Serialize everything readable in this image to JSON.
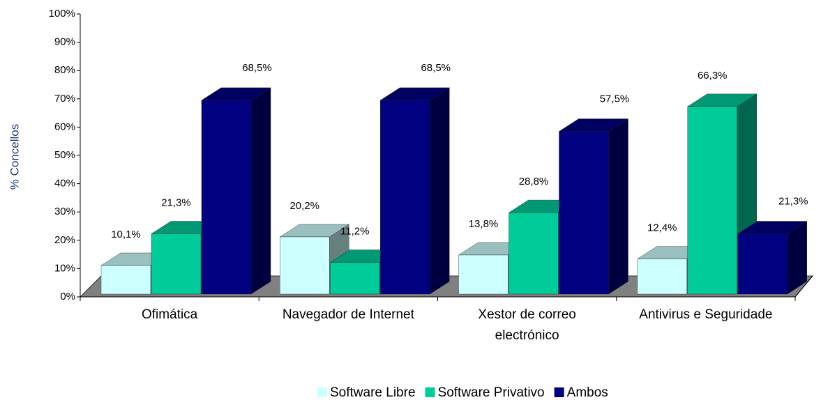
{
  "chart_data": {
    "type": "bar3d",
    "y_label": "% Concellos",
    "categories": [
      "Ofimática",
      "Navegador de Internet",
      "Xestor de correo electrónico",
      "Antivirus e Seguridade"
    ],
    "series": [
      {
        "name": "Software Libre",
        "color": "#ccffff",
        "values": [
          10.1,
          20.2,
          13.8,
          12.4
        ],
        "value_labels": [
          "10,1%",
          "20,2%",
          "13,8%",
          "12,4%"
        ]
      },
      {
        "name": "Software Privativo",
        "color": "#00cc99",
        "values": [
          21.3,
          11.2,
          28.8,
          66.3
        ],
        "value_labels": [
          "21,3%",
          "11,2%",
          "28,8%",
          "66,3%"
        ]
      },
      {
        "name": "Ambos",
        "color": "#000080",
        "values": [
          68.5,
          68.5,
          57.5,
          21.3
        ],
        "value_labels": [
          "68,5%",
          "68,5%",
          "57,5%",
          "21,3%"
        ]
      }
    ],
    "ylim": [
      0,
      100
    ],
    "yticks": [
      {
        "value": 0,
        "label": "0%"
      },
      {
        "value": 10,
        "label": "10%"
      },
      {
        "value": 20,
        "label": "20%"
      },
      {
        "value": 30,
        "label": "30%"
      },
      {
        "value": 40,
        "label": "40%"
      },
      {
        "value": 50,
        "label": "50%"
      },
      {
        "value": 60,
        "label": "60%"
      },
      {
        "value": 70,
        "label": "70%"
      },
      {
        "value": 80,
        "label": "80%"
      },
      {
        "value": 90,
        "label": "90%"
      },
      {
        "value": 100,
        "label": "100%"
      }
    ],
    "legend": "bottom"
  }
}
